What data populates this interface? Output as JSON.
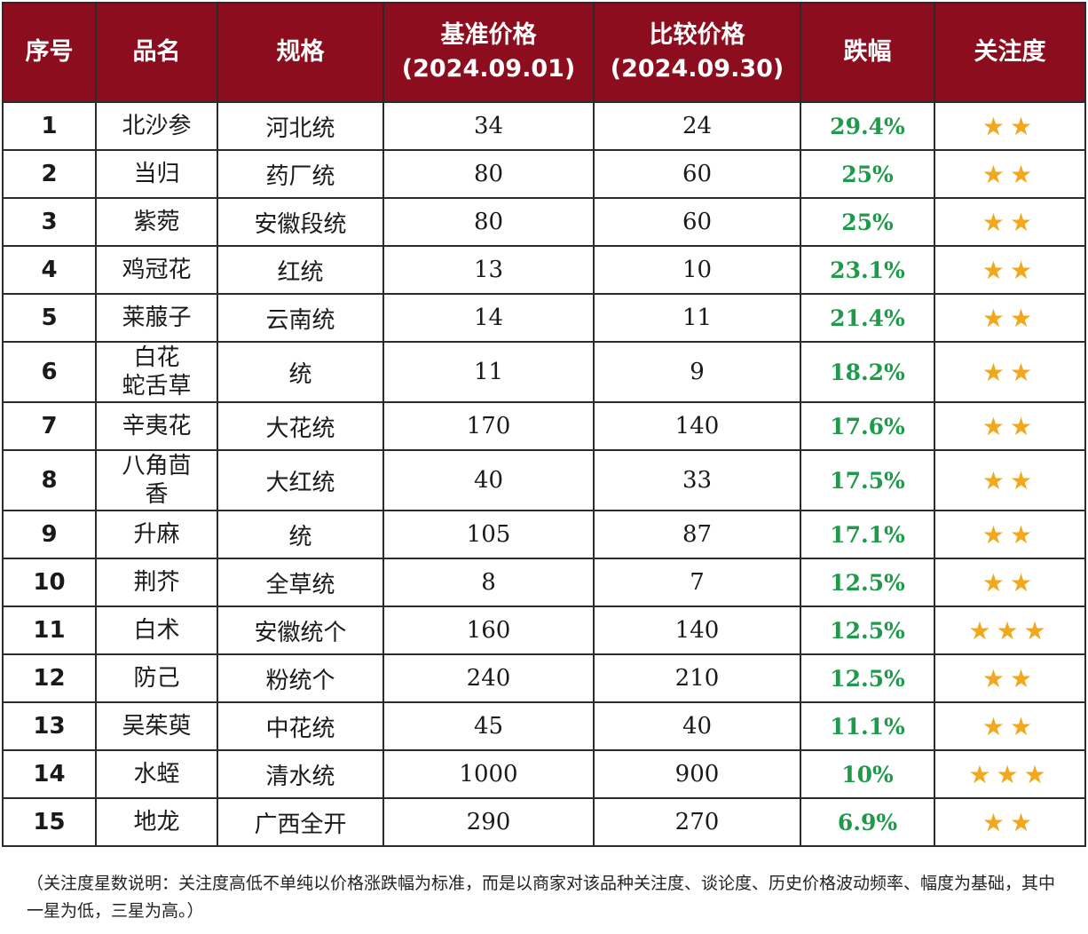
{
  "headers": {
    "idx": "序号",
    "name": "品名",
    "spec": "规格",
    "base_line1": "基准价格",
    "base_line2": "(2024.09.01)",
    "compare_line1": "比较价格",
    "compare_line2": "(2024.09.30)",
    "change": "跌幅",
    "attention": "关注度"
  },
  "rows": [
    {
      "idx": "1",
      "name": "北沙参",
      "spec": "河北统",
      "base": "34",
      "compare": "24",
      "change": "29.4%",
      "stars": "★★",
      "star_count": 2
    },
    {
      "idx": "2",
      "name": "当归",
      "spec": "药厂统",
      "base": "80",
      "compare": "60",
      "change": "25%",
      "stars": "★★",
      "star_count": 2
    },
    {
      "idx": "3",
      "name": "紫菀",
      "spec": "安徽段统",
      "base": "80",
      "compare": "60",
      "change": "25%",
      "stars": "★★",
      "star_count": 2
    },
    {
      "idx": "4",
      "name": "鸡冠花",
      "spec": "红统",
      "base": "13",
      "compare": "10",
      "change": "23.1%",
      "stars": "★★",
      "star_count": 2
    },
    {
      "idx": "5",
      "name": "莱菔子",
      "spec": "云南统",
      "base": "14",
      "compare": "11",
      "change": "21.4%",
      "stars": "★★",
      "star_count": 2
    },
    {
      "idx": "6",
      "name": "白花蛇舌草",
      "name_line1": "白花",
      "name_line2": "蛇舌草",
      "spec": "统",
      "base": "11",
      "compare": "9",
      "change": "18.2%",
      "stars": "★★",
      "star_count": 2
    },
    {
      "idx": "7",
      "name": "辛夷花",
      "spec": "大花统",
      "base": "170",
      "compare": "140",
      "change": "17.6%",
      "stars": "★★",
      "star_count": 2
    },
    {
      "idx": "8",
      "name": "八角茴香",
      "name_line1": "八角茴",
      "name_line2": "香",
      "spec": "大红统",
      "base": "40",
      "compare": "33",
      "change": "17.5%",
      "stars": "★★",
      "star_count": 2
    },
    {
      "idx": "9",
      "name": "升麻",
      "spec": "统",
      "base": "105",
      "compare": "87",
      "change": "17.1%",
      "stars": "★★",
      "star_count": 2
    },
    {
      "idx": "10",
      "name": "荆芥",
      "spec": "全草统",
      "base": "8",
      "compare": "7",
      "change": "12.5%",
      "stars": "★★",
      "star_count": 2
    },
    {
      "idx": "11",
      "name": "白术",
      "spec": "安徽统个",
      "base": "160",
      "compare": "140",
      "change": "12.5%",
      "stars": "★★★",
      "star_count": 3
    },
    {
      "idx": "12",
      "name": "防己",
      "spec": "粉统个",
      "base": "240",
      "compare": "210",
      "change": "12.5%",
      "stars": "★★",
      "star_count": 2
    },
    {
      "idx": "13",
      "name": "吴茱萸",
      "spec": "中花统",
      "base": "45",
      "compare": "40",
      "change": "11.1%",
      "stars": "★★",
      "star_count": 2
    },
    {
      "idx": "14",
      "name": "水蛭",
      "spec": "清水统",
      "base": "1000",
      "compare": "900",
      "change": "10%",
      "stars": "★★★",
      "star_count": 3
    },
    {
      "idx": "15",
      "name": "地龙",
      "spec": "广西全开",
      "base": "290",
      "compare": "270",
      "change": "6.9%",
      "stars": "★★",
      "star_count": 2
    }
  ],
  "note": "（关注度星数说明：关注度高低不单纯以价格涨跌幅为标准，而是以商家对该品种关注度、谈论度、历史价格波动频率、幅度为基础，其中一星为低，三星为高。）",
  "colors": {
    "header_bg": "#8c0e1e",
    "header_text": "#ffffff",
    "change_text": "#1e9a4a",
    "star": "#f2a81d"
  }
}
